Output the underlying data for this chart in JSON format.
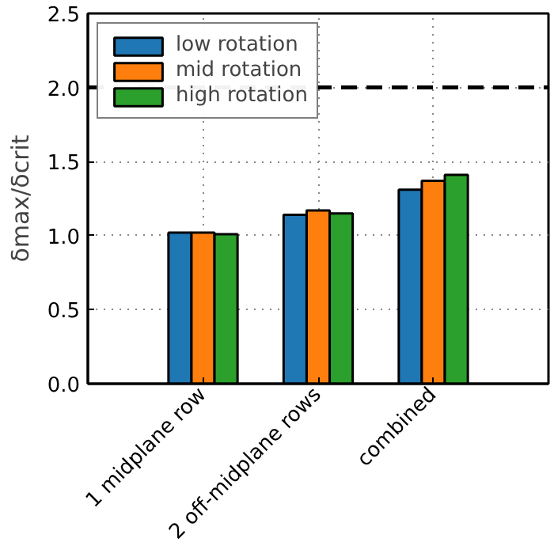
{
  "chart_data": {
    "type": "bar",
    "ylabel": "δmax/δcrit",
    "categories": [
      "1 midplane row",
      "2 off-midplane rows",
      "combined"
    ],
    "series": [
      {
        "name": "low rotation",
        "color": "#1f77b4",
        "values": [
          1.02,
          1.14,
          1.31
        ]
      },
      {
        "name": "mid rotation",
        "color": "#ff7f0e",
        "values": [
          1.02,
          1.17,
          1.37
        ]
      },
      {
        "name": "high rotation",
        "color": "#2ca02c",
        "values": [
          1.01,
          1.15,
          1.41
        ]
      }
    ],
    "ylim": [
      0,
      2.5
    ],
    "yticks": [
      {
        "value": 0,
        "label": "0.0"
      },
      {
        "value": 0.5,
        "label": "0.5"
      },
      {
        "value": 1,
        "label": "1.0"
      },
      {
        "value": 1.5,
        "label": "1.5"
      },
      {
        "value": 2,
        "label": "2.0"
      },
      {
        "value": 2.5,
        "label": "2.5"
      }
    ],
    "ref_lines": [
      {
        "axis": "y",
        "value": 2.0,
        "color": "#000000",
        "line_style": "dashed"
      }
    ],
    "grid": true,
    "legend": "top left"
  }
}
